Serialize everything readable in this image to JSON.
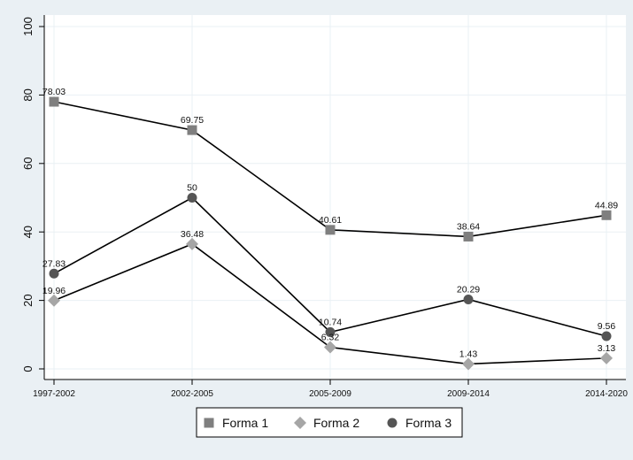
{
  "chart_data": {
    "type": "line",
    "categories": [
      "1997-2002",
      "2002-2005",
      "2005-2009",
      "2009-2014",
      "2014-2020"
    ],
    "series": [
      {
        "name": "Forma 1",
        "values": [
          78.03,
          69.75,
          40.61,
          38.64,
          44.89
        ],
        "labels": [
          "78.03",
          "69.75",
          "40.61",
          "38.64",
          "44.89"
        ],
        "marker": "square",
        "color": "#7f7f7f"
      },
      {
        "name": "Forma 2",
        "values": [
          19.96,
          36.48,
          6.32,
          1.43,
          3.13
        ],
        "labels": [
          "19.96",
          "36.48",
          "6.32",
          "1.43",
          "3.13"
        ],
        "marker": "diamond",
        "color": "#a6a6a6"
      },
      {
        "name": "Forma 3",
        "values": [
          27.83,
          50,
          10.74,
          20.29,
          9.56
        ],
        "labels": [
          "27.83",
          "50",
          "10.74",
          "20.29",
          "9.56"
        ],
        "marker": "circle",
        "color": "#555555"
      }
    ],
    "yticks": [
      "0",
      "20",
      "40",
      "60",
      "80",
      "100"
    ],
    "ylim": [
      0,
      100
    ],
    "grid": true,
    "legend_position": "bottom",
    "line_color": "#000000",
    "plot_background": "#ffffff",
    "page_background": "#eaf0f4",
    "grid_color": "#eaf0f4"
  }
}
